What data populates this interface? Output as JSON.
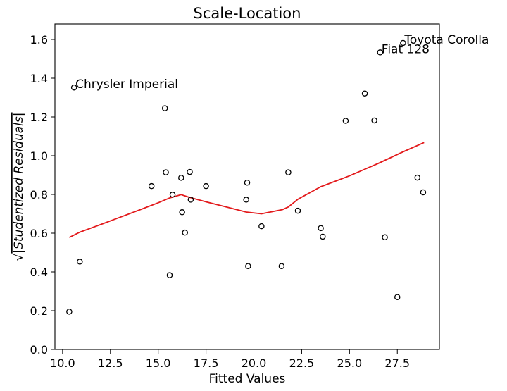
{
  "chart_data": {
    "type": "scatter",
    "title": "Scale-Location",
    "xlabel": "Fitted Values",
    "ylabel_root": "√",
    "ylabel_inner": "|Studentized Residuals|",
    "xlim": [
      9.6,
      29.7
    ],
    "ylim": [
      0.0,
      1.68
    ],
    "xticks": [
      10.0,
      12.5,
      15.0,
      17.5,
      20.0,
      22.5,
      25.0,
      27.5
    ],
    "xtick_labels": [
      "10.0",
      "12.5",
      "15.0",
      "17.5",
      "20.0",
      "22.5",
      "25.0",
      "27.5"
    ],
    "yticks": [
      0.0,
      0.2,
      0.4,
      0.6,
      0.8,
      1.0,
      1.2,
      1.4,
      1.6
    ],
    "ytick_labels": [
      "0.0",
      "0.2",
      "0.4",
      "0.6",
      "0.8",
      "1.0",
      "1.2",
      "1.4",
      "1.6"
    ],
    "grid": false,
    "points": [
      {
        "x": 10.35,
        "y": 0.195
      },
      {
        "x": 10.6,
        "y": 1.352
      },
      {
        "x": 10.9,
        "y": 0.453
      },
      {
        "x": 14.65,
        "y": 0.843
      },
      {
        "x": 15.35,
        "y": 1.245
      },
      {
        "x": 15.4,
        "y": 0.914
      },
      {
        "x": 15.6,
        "y": 0.383
      },
      {
        "x": 15.75,
        "y": 0.799
      },
      {
        "x": 16.2,
        "y": 0.886
      },
      {
        "x": 16.25,
        "y": 0.708
      },
      {
        "x": 16.4,
        "y": 0.603
      },
      {
        "x": 16.65,
        "y": 0.916
      },
      {
        "x": 16.7,
        "y": 0.773
      },
      {
        "x": 17.5,
        "y": 0.843
      },
      {
        "x": 19.6,
        "y": 0.773
      },
      {
        "x": 19.65,
        "y": 0.861
      },
      {
        "x": 19.7,
        "y": 0.43
      },
      {
        "x": 20.4,
        "y": 0.636
      },
      {
        "x": 21.45,
        "y": 0.43
      },
      {
        "x": 21.8,
        "y": 0.914
      },
      {
        "x": 22.3,
        "y": 0.716
      },
      {
        "x": 23.5,
        "y": 0.626
      },
      {
        "x": 23.6,
        "y": 0.582
      },
      {
        "x": 24.8,
        "y": 1.18
      },
      {
        "x": 25.8,
        "y": 1.321
      },
      {
        "x": 26.3,
        "y": 1.182
      },
      {
        "x": 26.6,
        "y": 1.533
      },
      {
        "x": 26.85,
        "y": 0.579
      },
      {
        "x": 27.5,
        "y": 0.27
      },
      {
        "x": 27.8,
        "y": 1.582
      },
      {
        "x": 28.55,
        "y": 0.887
      },
      {
        "x": 28.85,
        "y": 0.811
      }
    ],
    "lowess": {
      "x": [
        10.35,
        10.9,
        12.0,
        13.0,
        14.0,
        15.0,
        15.6,
        16.2,
        16.6,
        17.5,
        18.5,
        19.6,
        20.4,
        21.0,
        21.5,
        21.8,
        22.3,
        23.5,
        25.0,
        26.5,
        27.8,
        28.9
      ],
      "y": [
        0.578,
        0.605,
        0.645,
        0.682,
        0.719,
        0.757,
        0.782,
        0.799,
        0.786,
        0.762,
        0.737,
        0.709,
        0.7,
        0.712,
        0.722,
        0.735,
        0.775,
        0.84,
        0.896,
        0.96,
        1.02,
        1.068
      ]
    },
    "annotations": [
      {
        "text": "Chrysler Imperial",
        "x": 10.6,
        "y": 1.352
      },
      {
        "text": "Fiat 128",
        "x": 26.6,
        "y": 1.533
      },
      {
        "text": "Toyota Corolla",
        "x": 27.8,
        "y": 1.582
      }
    ],
    "colors": {
      "points": "#000000",
      "lowess": "#e31a1c",
      "axes": "#000000",
      "background": "#ffffff"
    }
  }
}
